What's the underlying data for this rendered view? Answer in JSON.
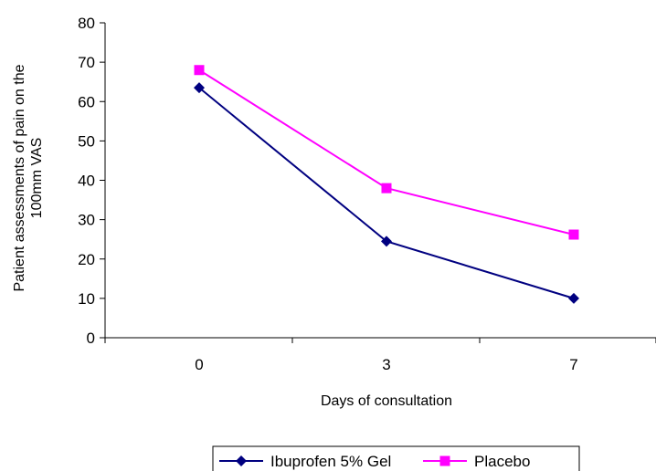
{
  "chart_data": {
    "type": "line",
    "title": "",
    "xlabel": "Days of consultation",
    "ylabel_lines": [
      "Patient assessments of pain on the",
      "100mm VAS"
    ],
    "categories": [
      "0",
      "3",
      "7"
    ],
    "ylim": [
      0,
      80
    ],
    "yticks": [
      0,
      10,
      20,
      30,
      40,
      50,
      60,
      70,
      80
    ],
    "grid": false,
    "legend_position": "bottom",
    "series": [
      {
        "name": "Ibuprofen 5% Gel",
        "values": [
          63.5,
          24.5,
          10
        ],
        "color": "#000080",
        "marker": "diamond"
      },
      {
        "name": "Placebo",
        "values": [
          68,
          38,
          26.2
        ],
        "color": "#FF00FF",
        "marker": "square"
      }
    ]
  }
}
